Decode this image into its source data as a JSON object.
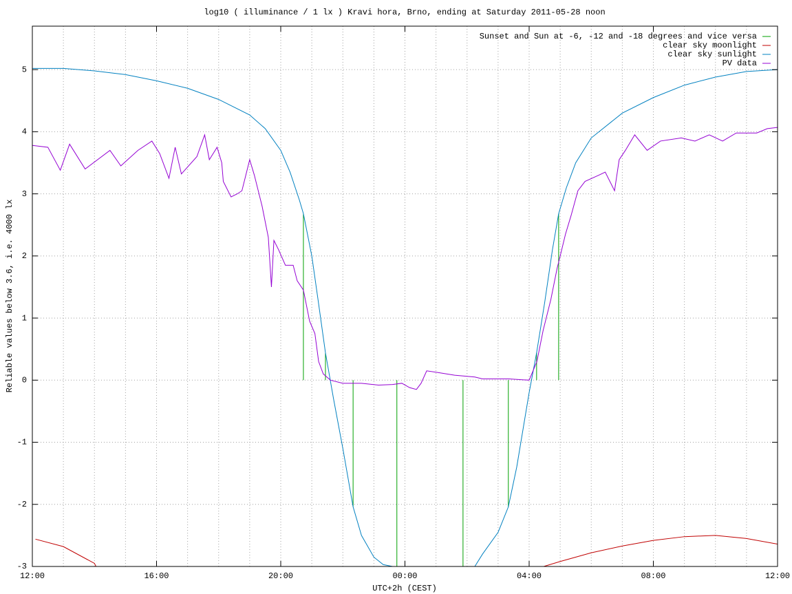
{
  "chart_data": {
    "type": "line",
    "title": "log10 ( illuminance / 1 lx ) Kravi hora, Brno, ending at Saturday 2011-05-28 noon",
    "x_label": "UTC+2h (CEST)",
    "y_label": "Reliable values below 3.6, i.e. 4000 lx",
    "xlim": [
      0,
      24
    ],
    "ylim": [
      -3,
      5.7
    ],
    "xticks": [
      {
        "value": 0,
        "label": "12:00"
      },
      {
        "value": 4,
        "label": "16:00"
      },
      {
        "value": 8,
        "label": "20:00"
      },
      {
        "value": 12,
        "label": "00:00"
      },
      {
        "value": 16,
        "label": "04:00"
      },
      {
        "value": 20,
        "label": "08:00"
      },
      {
        "value": 24,
        "label": "12:00"
      }
    ],
    "xgridlines": [
      0,
      1,
      2,
      3,
      4,
      5,
      6,
      7,
      8,
      9,
      10,
      11,
      12,
      13,
      14,
      15,
      16,
      17,
      18,
      19,
      20,
      21,
      22,
      23,
      24
    ],
    "yticks": [
      -3,
      -2,
      -1,
      0,
      1,
      2,
      3,
      4,
      5
    ],
    "grid": true,
    "legend": "top-right",
    "series": [
      {
        "name": "Sunset and Sun at -6, -12 and -18 degrees and vice versa",
        "color": "#00a000",
        "style": "impulses",
        "x": [
          8.73,
          9.44,
          10.33,
          11.74,
          13.87,
          15.33,
          16.24,
          16.95
        ],
        "values": [
          2.68,
          0.44,
          -2.04,
          -3,
          -3,
          -2.04,
          0.44,
          2.68
        ]
      },
      {
        "name": "clear sky moonlight",
        "color": "#c00000",
        "style": "line",
        "x": [
          0.1,
          1,
          2,
          2.05,
          null,
          16.47,
          17,
          18,
          19,
          20,
          21,
          22,
          23,
          24
        ],
        "values": [
          -2.56,
          -2.68,
          -2.95,
          -3,
          null,
          -3,
          -2.92,
          -2.78,
          -2.67,
          -2.58,
          -2.52,
          -2.5,
          -2.55,
          -2.64
        ]
      },
      {
        "name": "clear sky sunlight",
        "color": "#0080c0",
        "style": "line",
        "x": [
          0,
          1,
          2,
          3,
          4,
          5,
          6,
          7,
          7.5,
          8,
          8.3,
          8.6,
          8.73,
          9.0,
          9.2,
          9.44,
          9.7,
          10.0,
          10.33,
          10.6,
          11.0,
          11.3,
          11.6,
          null,
          14.25,
          14.5,
          15.0,
          15.33,
          15.6,
          16.0,
          16.24,
          16.5,
          16.75,
          16.95,
          17.2,
          17.5,
          18,
          19,
          20,
          21,
          22,
          23,
          24
        ],
        "values": [
          5.02,
          5.02,
          4.98,
          4.92,
          4.82,
          4.7,
          4.52,
          4.27,
          4.05,
          3.7,
          3.35,
          2.9,
          2.68,
          2.0,
          1.3,
          0.44,
          -0.3,
          -1.1,
          -2.04,
          -2.5,
          -2.85,
          -2.97,
          -3,
          null,
          -3,
          -2.8,
          -2.45,
          -2.04,
          -1.4,
          -0.2,
          0.44,
          1.25,
          2.1,
          2.68,
          3.1,
          3.5,
          3.9,
          4.3,
          4.55,
          4.75,
          4.88,
          4.97,
          5.0
        ]
      },
      {
        "name": "PV data",
        "color": "#9400d3",
        "style": "line",
        "x": [
          0,
          0.5,
          0.9,
          1.2,
          1.7,
          2.5,
          2.85,
          3.4,
          3.85,
          4.1,
          4.4,
          4.6,
          4.8,
          5.3,
          5.55,
          5.7,
          5.95,
          6.1,
          6.15,
          6.4,
          6.6,
          6.75,
          6.9,
          7.0,
          7.15,
          7.4,
          7.5,
          7.6,
          7.7,
          7.78,
          7.93,
          8.15,
          8.4,
          8.53,
          8.73,
          8.93,
          9.1,
          9.22,
          9.37,
          9.6,
          10.0,
          10.6,
          11.15,
          11.6,
          11.9,
          12.15,
          12.37,
          12.52,
          12.7,
          13.1,
          13.6,
          14.25,
          14.5,
          15.35,
          16.0,
          16.25,
          16.45,
          16.7,
          16.9,
          17.0,
          17.17,
          17.35,
          17.57,
          17.8,
          18.24,
          18.45,
          18.75,
          18.9,
          19.1,
          19.4,
          19.8,
          20.23,
          20.9,
          21.34,
          21.8,
          22.23,
          22.67,
          23.33,
          23.67,
          24
        ],
        "values": [
          3.78,
          3.75,
          3.38,
          3.8,
          3.4,
          3.7,
          3.45,
          3.7,
          3.85,
          3.65,
          3.25,
          3.75,
          3.32,
          3.6,
          3.95,
          3.55,
          3.75,
          3.5,
          3.2,
          2.95,
          3.0,
          3.05,
          3.35,
          3.55,
          3.3,
          2.8,
          2.55,
          2.3,
          1.5,
          2.25,
          2.1,
          1.85,
          1.85,
          1.6,
          1.45,
          0.95,
          0.75,
          0.3,
          0.1,
          0.0,
          -0.05,
          -0.05,
          -0.08,
          -0.07,
          -0.05,
          -0.12,
          -0.15,
          -0.05,
          0.15,
          0.12,
          0.08,
          0.05,
          0.02,
          0.02,
          0.0,
          0.3,
          0.8,
          1.3,
          1.8,
          2.0,
          2.35,
          2.65,
          3.05,
          3.2,
          3.3,
          3.35,
          3.05,
          3.55,
          3.7,
          3.95,
          3.7,
          3.85,
          3.9,
          3.85,
          3.95,
          3.85,
          3.98,
          3.98,
          4.05,
          4.07
        ]
      }
    ]
  }
}
